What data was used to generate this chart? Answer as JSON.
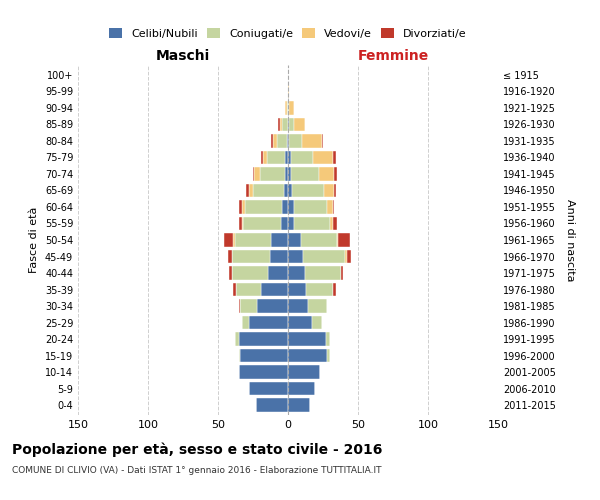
{
  "age_groups": [
    "0-4",
    "5-9",
    "10-14",
    "15-19",
    "20-24",
    "25-29",
    "30-34",
    "35-39",
    "40-44",
    "45-49",
    "50-54",
    "55-59",
    "60-64",
    "65-69",
    "70-74",
    "75-79",
    "80-84",
    "85-89",
    "90-94",
    "95-99",
    "100+"
  ],
  "birth_years": [
    "2011-2015",
    "2006-2010",
    "2001-2005",
    "1996-2000",
    "1991-1995",
    "1986-1990",
    "1981-1985",
    "1976-1980",
    "1971-1975",
    "1966-1970",
    "1961-1965",
    "1956-1960",
    "1951-1955",
    "1946-1950",
    "1941-1945",
    "1936-1940",
    "1931-1935",
    "1926-1930",
    "1921-1925",
    "1916-1920",
    "≤ 1915"
  ],
  "maschi": {
    "celibi": [
      23,
      28,
      35,
      34,
      35,
      28,
      22,
      19,
      14,
      13,
      12,
      5,
      4,
      3,
      2,
      2,
      1,
      0,
      0,
      0,
      0
    ],
    "coniugati": [
      0,
      0,
      0,
      1,
      3,
      5,
      12,
      18,
      26,
      27,
      26,
      27,
      27,
      22,
      18,
      13,
      7,
      4,
      1,
      0,
      0
    ],
    "vedovi": [
      0,
      0,
      0,
      0,
      0,
      0,
      0,
      0,
      0,
      0,
      1,
      1,
      2,
      3,
      4,
      3,
      3,
      2,
      1,
      0,
      0
    ],
    "divorziati": [
      0,
      0,
      0,
      0,
      0,
      0,
      1,
      2,
      2,
      3,
      7,
      2,
      2,
      2,
      1,
      1,
      1,
      1,
      0,
      0,
      0
    ]
  },
  "femmine": {
    "nubili": [
      16,
      19,
      23,
      28,
      27,
      17,
      14,
      13,
      12,
      11,
      9,
      4,
      4,
      3,
      2,
      2,
      1,
      1,
      0,
      0,
      0
    ],
    "coniugate": [
      0,
      0,
      0,
      2,
      3,
      7,
      14,
      19,
      26,
      30,
      26,
      26,
      24,
      23,
      20,
      16,
      9,
      3,
      1,
      0,
      0
    ],
    "vedove": [
      0,
      0,
      0,
      0,
      0,
      0,
      0,
      0,
      0,
      1,
      1,
      2,
      4,
      7,
      11,
      14,
      14,
      8,
      3,
      1,
      0
    ],
    "divorziate": [
      0,
      0,
      0,
      0,
      0,
      0,
      0,
      2,
      1,
      3,
      8,
      3,
      1,
      1,
      2,
      2,
      1,
      0,
      0,
      0,
      0
    ]
  },
  "colors": {
    "celibi": "#4a72a8",
    "coniugati": "#c5d5a0",
    "vedovi": "#f5c97a",
    "divorziati": "#c0392b"
  },
  "title": "Popolazione per età, sesso e stato civile - 2016",
  "subtitle": "COMUNE DI CLIVIO (VA) - Dati ISTAT 1° gennaio 2016 - Elaborazione TUTTITALIA.IT",
  "xlabel_left": "Maschi",
  "xlabel_right": "Femmine",
  "ylabel_left": "Fasce di età",
  "ylabel_right": "Anni di nascita",
  "xlim": 150,
  "background_color": "#ffffff",
  "grid_color": "#bbbbbb"
}
